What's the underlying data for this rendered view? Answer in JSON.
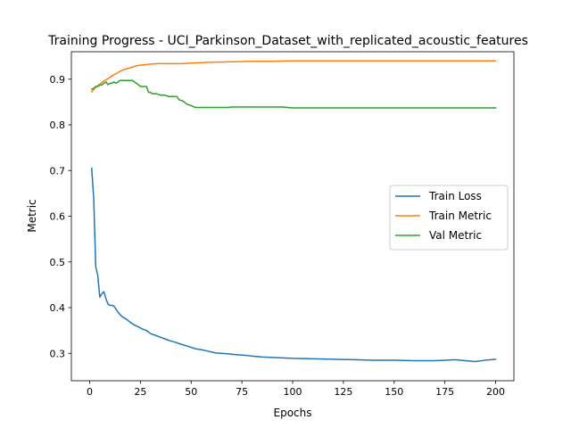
{
  "chart_data": {
    "type": "line",
    "title": "Training Progress - UCI_Parkinson_Dataset_with_replicated_acoustic_features",
    "xlabel": "Epochs",
    "ylabel": "Metric",
    "xlim": [
      -9,
      209
    ],
    "ylim": [
      0.24,
      0.96
    ],
    "xticks": [
      0,
      25,
      50,
      75,
      100,
      125,
      150,
      175,
      200
    ],
    "yticks": [
      0.3,
      0.4,
      0.5,
      0.6,
      0.7,
      0.8,
      0.9
    ],
    "grid": false,
    "legend_position": "center-right",
    "series": [
      {
        "name": "Train Loss",
        "color": "#1f77b4",
        "x": [
          1,
          2,
          3,
          4,
          5,
          6,
          7,
          8,
          9,
          10,
          11,
          12,
          14,
          16,
          18,
          20,
          22,
          24,
          26,
          28,
          30,
          32,
          35,
          38,
          40,
          43,
          45,
          48,
          50,
          52,
          55,
          58,
          60,
          62,
          65,
          68,
          70,
          72,
          75,
          78,
          80,
          85,
          90,
          95,
          100,
          110,
          120,
          130,
          140,
          150,
          160,
          170,
          175,
          180,
          185,
          190,
          195,
          200
        ],
        "values": [
          0.705,
          0.64,
          0.49,
          0.47,
          0.423,
          0.43,
          0.435,
          0.42,
          0.408,
          0.405,
          0.405,
          0.403,
          0.39,
          0.38,
          0.375,
          0.368,
          0.362,
          0.358,
          0.353,
          0.35,
          0.343,
          0.34,
          0.335,
          0.33,
          0.327,
          0.323,
          0.32,
          0.316,
          0.313,
          0.31,
          0.308,
          0.305,
          0.303,
          0.301,
          0.3,
          0.299,
          0.298,
          0.297,
          0.296,
          0.295,
          0.294,
          0.292,
          0.291,
          0.29,
          0.289,
          0.288,
          0.287,
          0.286,
          0.285,
          0.285,
          0.284,
          0.284,
          0.285,
          0.286,
          0.284,
          0.282,
          0.285,
          0.287
        ]
      },
      {
        "name": "Train Metric",
        "color": "#ff7f0e",
        "x": [
          1,
          3,
          5,
          7,
          9,
          11,
          13,
          15,
          17,
          20,
          23,
          26,
          30,
          33,
          36,
          40,
          45,
          50,
          55,
          60,
          70,
          80,
          90,
          100,
          120,
          140,
          160,
          180,
          200
        ],
        "values": [
          0.872,
          0.882,
          0.889,
          0.896,
          0.901,
          0.907,
          0.912,
          0.917,
          0.921,
          0.925,
          0.929,
          0.931,
          0.933,
          0.934,
          0.934,
          0.934,
          0.934,
          0.935,
          0.936,
          0.937,
          0.938,
          0.939,
          0.939,
          0.94,
          0.94,
          0.94,
          0.94,
          0.94,
          0.94
        ],
        "smooth": true
      },
      {
        "name": "Val Metric",
        "color": "#2ca02c",
        "x": [
          1,
          2,
          3,
          4,
          5,
          6,
          7,
          8,
          9,
          10,
          11,
          12,
          13,
          14,
          15,
          16,
          17,
          18,
          19,
          20,
          21,
          22,
          23,
          24,
          25,
          26,
          27,
          28,
          29,
          30,
          31,
          33,
          35,
          37,
          39,
          41,
          43,
          44,
          46,
          48,
          50,
          52,
          54,
          56,
          58,
          60,
          62,
          64,
          66,
          68,
          70,
          75,
          80,
          85,
          90,
          95,
          100,
          125,
          150,
          175,
          200
        ],
        "values": [
          0.878,
          0.88,
          0.884,
          0.884,
          0.887,
          0.887,
          0.891,
          0.894,
          0.888,
          0.891,
          0.891,
          0.894,
          0.891,
          0.894,
          0.897,
          0.897,
          0.897,
          0.897,
          0.897,
          0.897,
          0.897,
          0.894,
          0.891,
          0.888,
          0.884,
          0.884,
          0.884,
          0.884,
          0.871,
          0.871,
          0.868,
          0.868,
          0.865,
          0.865,
          0.862,
          0.862,
          0.862,
          0.855,
          0.852,
          0.845,
          0.842,
          0.838,
          0.838,
          0.838,
          0.838,
          0.838,
          0.838,
          0.838,
          0.838,
          0.838,
          0.839,
          0.839,
          0.839,
          0.839,
          0.839,
          0.839,
          0.837,
          0.837,
          0.837,
          0.837,
          0.837
        ]
      }
    ]
  }
}
